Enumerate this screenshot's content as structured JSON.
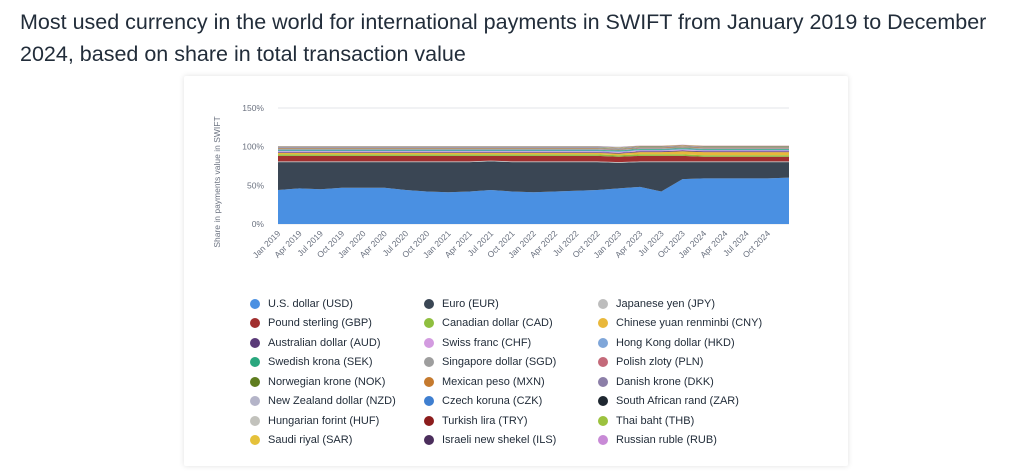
{
  "page": {
    "title": "Most used currency in the world for international payments in SWIFT from January 2019 to December 2024, based on share in total transaction value"
  },
  "chart_data": {
    "type": "area",
    "stacked": true,
    "title": "",
    "ylabel": "Share in payments value in SWIFT",
    "xlabel": "",
    "ylim": [
      0,
      150
    ],
    "y_ticks": [
      "0%",
      "50%",
      "100%",
      "150%"
    ],
    "x_tick_labels": [
      "Jan 2019",
      "Apr 2019",
      "Jul 2019",
      "Oct 2019",
      "Jan 2020",
      "Apr 2020",
      "Jul 2020",
      "Oct 2020",
      "Jan 2021",
      "Apr 2021",
      "Jul 2021",
      "Oct 2021",
      "Jan 2022",
      "Apr 2022",
      "Jul 2022",
      "Oct 2022",
      "Jan 2023",
      "Apr 2023",
      "Jul 2023",
      "Oct 2023",
      "Jan 2024",
      "Apr 2024",
      "Jul 2024",
      "Oct 2024"
    ],
    "x": [
      "Jan 2019",
      "Apr 2019",
      "Jul 2019",
      "Oct 2019",
      "Jan 2020",
      "Apr 2020",
      "Jul 2020",
      "Oct 2020",
      "Jan 2021",
      "Apr 2021",
      "Jul 2021",
      "Oct 2021",
      "Jan 2022",
      "Apr 2022",
      "Jul 2022",
      "Oct 2022",
      "Jan 2023",
      "Apr 2023",
      "Jul 2023",
      "Oct 2023",
      "Jan 2024",
      "Apr 2024",
      "Jul 2024",
      "Oct 2024",
      "Dec 2024"
    ],
    "grid": true,
    "legend_position": "bottom",
    "series": [
      {
        "name": "U.S. dollar (USD)",
        "color": "#4a90e2",
        "values": [
          44,
          46,
          45,
          47,
          47,
          47,
          44,
          42,
          41,
          42,
          44,
          42,
          41,
          42,
          43,
          44,
          46,
          48,
          42,
          58,
          59,
          59,
          59,
          59,
          60
        ]
      },
      {
        "name": "Euro (EUR)",
        "color": "#3a4654",
        "values": [
          36,
          34,
          35,
          33,
          33,
          33,
          36,
          38,
          39,
          38,
          37,
          38,
          39,
          38,
          37,
          36,
          33,
          32,
          38,
          22,
          21,
          21,
          21,
          21,
          20
        ]
      },
      {
        "name": "Japanese yen (JPY)",
        "color": "#bdbdbd",
        "values": [
          1,
          1,
          1,
          1,
          1,
          1,
          1,
          1,
          1,
          1,
          1,
          1,
          1,
          1,
          1,
          1,
          1,
          1,
          1,
          1,
          1,
          1,
          1,
          1,
          1
        ]
      },
      {
        "name": "Pound sterling (GBP)",
        "color": "#a12f2f",
        "values": [
          7,
          7,
          7,
          7,
          7,
          7,
          7,
          7,
          7,
          7,
          6,
          7,
          7,
          7,
          7,
          7,
          7,
          7,
          7,
          7,
          6,
          6,
          6,
          6,
          6
        ]
      },
      {
        "name": "Canadian dollar (CAD)",
        "color": "#8fbf3f",
        "values": [
          2,
          2,
          2,
          2,
          2,
          2,
          2,
          2,
          2,
          2,
          2,
          2,
          2,
          2,
          2,
          2,
          2,
          2,
          2,
          2,
          2,
          2,
          2,
          2,
          2
        ]
      },
      {
        "name": "Chinese yuan renminbi (CNY)",
        "color": "#e9b83b",
        "values": [
          2,
          2,
          2,
          2,
          2,
          2,
          2,
          2,
          2,
          2,
          2,
          2,
          2,
          2,
          2,
          2,
          2,
          3,
          3,
          4,
          4,
          4,
          4,
          4,
          4
        ]
      },
      {
        "name": "Australian dollar (AUD)",
        "color": "#5a3a78",
        "values": [
          1,
          1,
          1,
          1,
          1,
          1,
          1,
          1,
          1,
          1,
          1,
          1,
          1,
          1,
          1,
          1,
          1,
          1,
          1,
          1,
          1,
          1,
          1,
          1,
          1
        ]
      },
      {
        "name": "Swiss franc (CHF)",
        "color": "#d39be0",
        "values": [
          1,
          1,
          1,
          1,
          1,
          1,
          1,
          1,
          1,
          1,
          1,
          1,
          1,
          1,
          1,
          1,
          1,
          1,
          1,
          1,
          1,
          1,
          1,
          1,
          1
        ]
      },
      {
        "name": "Hong Kong dollar (HKD)",
        "color": "#7fa6d9",
        "values": [
          1,
          1,
          1,
          1,
          1,
          1,
          1,
          1,
          1,
          1,
          1,
          1,
          1,
          1,
          1,
          1,
          1,
          1,
          1,
          1,
          1,
          1,
          1,
          1,
          1
        ]
      },
      {
        "name": "Swedish krona (SEK)",
        "color": "#2aa77e",
        "values": [
          1,
          1,
          1,
          1,
          1,
          1,
          1,
          1,
          1,
          1,
          1,
          1,
          1,
          1,
          1,
          1,
          1,
          1,
          1,
          1,
          1,
          1,
          1,
          1,
          1
        ]
      },
      {
        "name": "Singapore dollar (SGD)",
        "color": "#9e9e9e",
        "values": [
          1,
          1,
          1,
          1,
          1,
          1,
          1,
          1,
          1,
          1,
          1,
          1,
          1,
          1,
          1,
          1,
          1,
          1,
          1,
          1,
          1,
          1,
          1,
          1,
          1
        ]
      },
      {
        "name": "Polish zloty (PLN)",
        "color": "#c46a7a",
        "values": [
          0.5,
          0.5,
          0.5,
          0.5,
          0.5,
          0.5,
          0.5,
          0.5,
          0.5,
          0.5,
          0.5,
          0.5,
          0.5,
          0.5,
          0.5,
          0.5,
          0.5,
          0.5,
          0.5,
          0.5,
          0.5,
          0.5,
          0.5,
          0.5,
          0.5
        ]
      },
      {
        "name": "Norwegian krone (NOK)",
        "color": "#5f7d1f",
        "values": [
          0.5,
          0.5,
          0.5,
          0.5,
          0.5,
          0.5,
          0.5,
          0.5,
          0.5,
          0.5,
          0.5,
          0.5,
          0.5,
          0.5,
          0.5,
          0.5,
          0.5,
          0.5,
          0.5,
          0.5,
          0.5,
          0.5,
          0.5,
          0.5,
          0.5
        ]
      },
      {
        "name": "Mexican peso (MXN)",
        "color": "#c57a2e",
        "values": [
          0.3,
          0.3,
          0.3,
          0.3,
          0.3,
          0.3,
          0.3,
          0.3,
          0.3,
          0.3,
          0.3,
          0.3,
          0.3,
          0.3,
          0.3,
          0.3,
          0.3,
          0.3,
          0.3,
          0.3,
          0.3,
          0.3,
          0.3,
          0.3,
          0.3
        ]
      },
      {
        "name": "Danish krone (DKK)",
        "color": "#8c7fa8",
        "values": [
          0.3,
          0.3,
          0.3,
          0.3,
          0.3,
          0.3,
          0.3,
          0.3,
          0.3,
          0.3,
          0.3,
          0.3,
          0.3,
          0.3,
          0.3,
          0.3,
          0.3,
          0.3,
          0.3,
          0.3,
          0.3,
          0.3,
          0.3,
          0.3,
          0.3
        ]
      },
      {
        "name": "New Zealand dollar (NZD)",
        "color": "#b4b4c8",
        "values": [
          0.2,
          0.2,
          0.2,
          0.2,
          0.2,
          0.2,
          0.2,
          0.2,
          0.2,
          0.2,
          0.2,
          0.2,
          0.2,
          0.2,
          0.2,
          0.2,
          0.2,
          0.2,
          0.2,
          0.2,
          0.2,
          0.2,
          0.2,
          0.2,
          0.2
        ]
      },
      {
        "name": "Czech koruna (CZK)",
        "color": "#3f7fd0",
        "values": [
          0.2,
          0.2,
          0.2,
          0.2,
          0.2,
          0.2,
          0.2,
          0.2,
          0.2,
          0.2,
          0.2,
          0.2,
          0.2,
          0.2,
          0.2,
          0.2,
          0.2,
          0.2,
          0.2,
          0.2,
          0.2,
          0.2,
          0.2,
          0.2,
          0.2
        ]
      },
      {
        "name": "South African rand (ZAR)",
        "color": "#1e2730",
        "values": [
          0.2,
          0.2,
          0.2,
          0.2,
          0.2,
          0.2,
          0.2,
          0.2,
          0.2,
          0.2,
          0.2,
          0.2,
          0.2,
          0.2,
          0.2,
          0.2,
          0.2,
          0.2,
          0.2,
          0.2,
          0.2,
          0.2,
          0.2,
          0.2,
          0.2
        ]
      },
      {
        "name": "Hungarian forint (HUF)",
        "color": "#c2c2bc",
        "values": [
          0.2,
          0.2,
          0.2,
          0.2,
          0.2,
          0.2,
          0.2,
          0.2,
          0.2,
          0.2,
          0.2,
          0.2,
          0.2,
          0.2,
          0.2,
          0.2,
          0.2,
          0.2,
          0.2,
          0.2,
          0.2,
          0.2,
          0.2,
          0.2,
          0.2
        ]
      },
      {
        "name": "Turkish lira (TRY)",
        "color": "#8c1d1d",
        "values": [
          0.2,
          0.2,
          0.2,
          0.2,
          0.2,
          0.2,
          0.2,
          0.2,
          0.2,
          0.2,
          0.2,
          0.2,
          0.2,
          0.2,
          0.2,
          0.2,
          0.2,
          0.2,
          0.2,
          0.2,
          0.2,
          0.2,
          0.2,
          0.2,
          0.2
        ]
      },
      {
        "name": "Thai baht (THB)",
        "color": "#9cc23f",
        "values": [
          0.3,
          0.3,
          0.3,
          0.3,
          0.3,
          0.3,
          0.3,
          0.3,
          0.3,
          0.3,
          0.3,
          0.3,
          0.3,
          0.3,
          0.3,
          0.3,
          0.3,
          0.3,
          0.3,
          0.3,
          0.3,
          0.3,
          0.3,
          0.3,
          0.3
        ]
      },
      {
        "name": "Saudi riyal (SAR)",
        "color": "#e5c13a",
        "values": [
          0.2,
          0.2,
          0.2,
          0.2,
          0.2,
          0.2,
          0.2,
          0.2,
          0.2,
          0.2,
          0.2,
          0.2,
          0.2,
          0.2,
          0.2,
          0.2,
          0.2,
          0.2,
          0.2,
          0.2,
          0.2,
          0.2,
          0.2,
          0.2,
          0.2
        ]
      },
      {
        "name": "Israeli new shekel (ILS)",
        "color": "#4b2e5c",
        "values": [
          0.2,
          0.2,
          0.2,
          0.2,
          0.2,
          0.2,
          0.2,
          0.2,
          0.2,
          0.2,
          0.2,
          0.2,
          0.2,
          0.2,
          0.2,
          0.2,
          0.2,
          0.2,
          0.2,
          0.2,
          0.2,
          0.2,
          0.2,
          0.2,
          0.2
        ]
      },
      {
        "name": "Russian ruble (RUB)",
        "color": "#c88ad6",
        "values": [
          0.2,
          0.2,
          0.2,
          0.2,
          0.2,
          0.2,
          0.2,
          0.2,
          0.2,
          0.2,
          0.2,
          0.2,
          0.2,
          0.2,
          0.2,
          0.2,
          0.2,
          0.2,
          0.2,
          0.2,
          0.2,
          0.2,
          0.2,
          0.2,
          0.2
        ]
      }
    ]
  }
}
